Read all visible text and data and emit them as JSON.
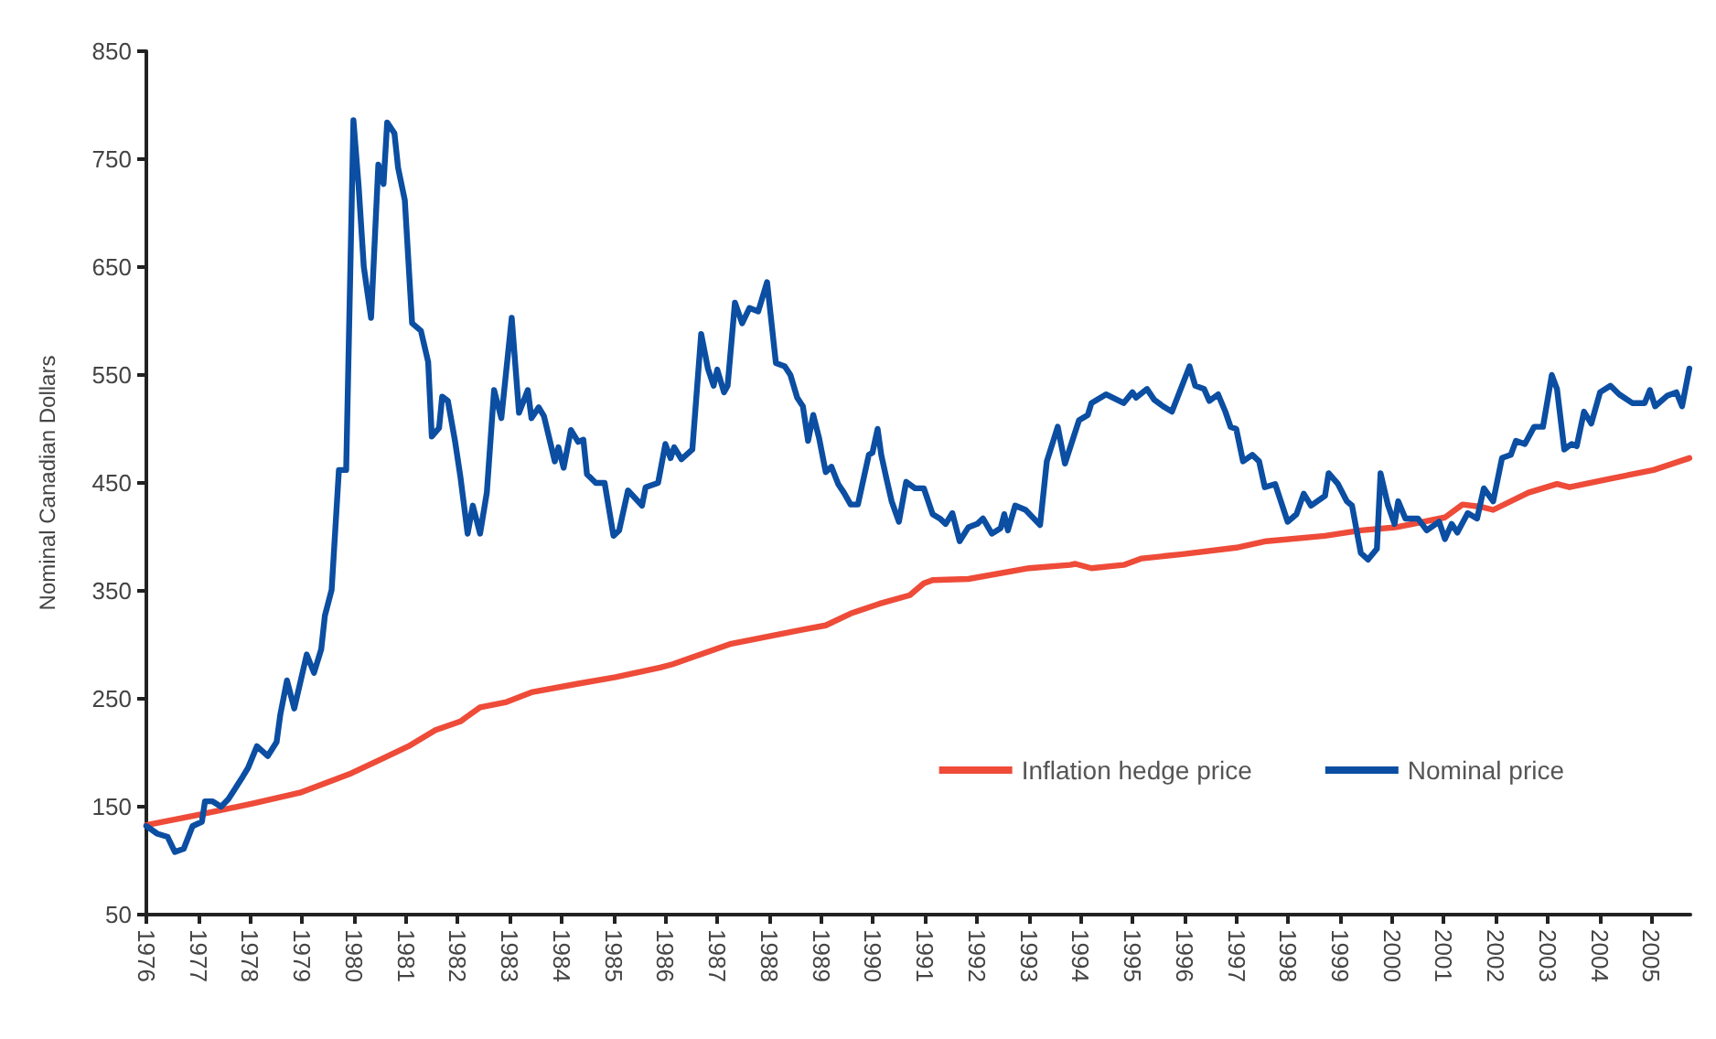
{
  "chart_data": {
    "type": "line",
    "ylabel": "Nominal Canadian Dollars",
    "xlim": [
      1976,
      2005.75
    ],
    "xticks": [
      1976,
      1977,
      1978,
      1979,
      1980,
      1981,
      1982,
      1983,
      1984,
      1985,
      1986,
      1987,
      1988,
      1989,
      1990,
      1991,
      1992,
      1993,
      1994,
      1995,
      1996,
      1997,
      1998,
      1999,
      2000,
      2001,
      2002,
      2003,
      2004,
      2005
    ],
    "ylim": [
      50,
      850
    ],
    "yticks": [
      50,
      150,
      250,
      350,
      450,
      550,
      650,
      750,
      850
    ],
    "grid": false,
    "legend": "bottom right",
    "marker": "none",
    "line_style": "solid",
    "series": [
      {
        "name": "Inflation hedge price",
        "color": "#ee4b39",
        "x": [
          1976.0,
          1976.96,
          1978.06,
          1978.96,
          1979.95,
          1980.57,
          1981.05,
          1981.57,
          1982.05,
          1982.43,
          1982.94,
          1983.42,
          1984.32,
          1985.04,
          1985.9,
          1986.14,
          1987.27,
          1988.65,
          1989.09,
          1989.57,
          1990.12,
          1990.71,
          1990.98,
          1991.15,
          1991.84,
          1993.01,
          1993.8,
          1993.9,
          1994.21,
          1994.83,
          1995.18,
          1995.97,
          1997.0,
          1997.58,
          1998.71,
          1999.4,
          2000.09,
          2001.02,
          2001.36,
          2001.7,
          2001.95,
          2002.63,
          2003.18,
          2003.42,
          2004.21,
          2005.04,
          2005.73
        ],
        "values": [
          133,
          142,
          153,
          163,
          181,
          195,
          206,
          221,
          229,
          242,
          247,
          256,
          264,
          270,
          279,
          282,
          301,
          314,
          318,
          329,
          338,
          346,
          357,
          360,
          361,
          371,
          374,
          375,
          371,
          374,
          380,
          384,
          390,
          396,
          401,
          406,
          409,
          418,
          430,
          428,
          425,
          441,
          449,
          446,
          454,
          462,
          473
        ]
      },
      {
        "name": "Nominal price",
        "color": "#0b4ea2",
        "x": [
          1976.0,
          1976.21,
          1976.41,
          1976.55,
          1976.72,
          1976.89,
          1977.07,
          1977.13,
          1977.27,
          1977.44,
          1977.58,
          1977.86,
          1977.96,
          1978.13,
          1978.34,
          1978.51,
          1978.58,
          1978.71,
          1978.85,
          1979.09,
          1979.23,
          1979.37,
          1979.44,
          1979.57,
          1979.71,
          1979.85,
          1979.99,
          1980.09,
          1980.19,
          1980.33,
          1980.47,
          1980.57,
          1980.64,
          1980.78,
          1980.85,
          1980.98,
          1981.12,
          1981.29,
          1981.43,
          1981.5,
          1981.64,
          1981.7,
          1981.81,
          1981.95,
          1982.05,
          1982.19,
          1982.29,
          1982.43,
          1982.56,
          1982.7,
          1982.84,
          1983.04,
          1983.18,
          1983.35,
          1983.42,
          1983.56,
          1983.66,
          1983.87,
          1983.94,
          1984.04,
          1984.18,
          1984.32,
          1984.42,
          1984.49,
          1984.66,
          1984.83,
          1985.0,
          1985.11,
          1985.28,
          1985.55,
          1985.62,
          1985.86,
          1986.0,
          1986.1,
          1986.17,
          1986.31,
          1986.52,
          1986.69,
          1986.82,
          1986.93,
          1987.0,
          1987.13,
          1987.2,
          1987.34,
          1987.48,
          1987.62,
          1987.79,
          1987.96,
          1988.13,
          1988.3,
          1988.41,
          1988.54,
          1988.65,
          1988.75,
          1988.85,
          1988.96,
          1989.09,
          1989.2,
          1989.33,
          1989.44,
          1989.57,
          1989.71,
          1989.92,
          1989.99,
          1990.09,
          1990.16,
          1990.26,
          1990.36,
          1990.5,
          1990.64,
          1990.81,
          1990.98,
          1991.15,
          1991.29,
          1991.4,
          1991.53,
          1991.67,
          1991.84,
          1992.01,
          1992.12,
          1992.29,
          1992.46,
          1992.53,
          1992.6,
          1992.74,
          1992.94,
          1993.22,
          1993.35,
          1993.56,
          1993.7,
          1993.97,
          1994.14,
          1994.21,
          1994.49,
          1994.83,
          1995.0,
          1995.07,
          1995.28,
          1995.42,
          1995.59,
          1995.76,
          1996.1,
          1996.21,
          1996.38,
          1996.48,
          1996.65,
          1996.79,
          1996.89,
          1997.0,
          1997.13,
          1997.31,
          1997.44,
          1997.55,
          1997.75,
          1997.99,
          1998.16,
          1998.3,
          1998.44,
          1998.71,
          1998.78,
          1998.96,
          1999.13,
          1999.23,
          1999.4,
          1999.54,
          1999.71,
          1999.78,
          1999.92,
          2000.05,
          2000.12,
          2000.26,
          2000.5,
          2000.67,
          2000.91,
          2001.02,
          2001.15,
          2001.26,
          2001.46,
          2001.64,
          2001.77,
          2001.95,
          2002.12,
          2002.29,
          2002.39,
          2002.56,
          2002.74,
          2002.91,
          2003.08,
          2003.18,
          2003.32,
          2003.46,
          2003.56,
          2003.7,
          2003.84,
          2004.01,
          2004.21,
          2004.38,
          2004.63,
          2004.87,
          2004.97,
          2005.07,
          2005.31,
          2005.48,
          2005.59,
          2005.73
        ],
        "values": [
          132,
          125,
          122,
          108,
          111,
          132,
          136,
          155,
          155,
          150,
          157,
          178,
          186,
          206,
          197,
          210,
          235,
          267,
          241,
          291,
          274,
          296,
          327,
          351,
          462,
          462,
          786,
          725,
          650,
          603,
          745,
          727,
          784,
          774,
          742,
          712,
          598,
          591,
          562,
          493,
          501,
          530,
          526,
          488,
          456,
          403,
          429,
          403,
          441,
          536,
          510,
          603,
          515,
          536,
          510,
          520,
          512,
          470,
          483,
          464,
          499,
          488,
          490,
          458,
          450,
          450,
          401,
          406,
          443,
          429,
          446,
          450,
          486,
          473,
          483,
          472,
          481,
          588,
          556,
          540,
          555,
          534,
          540,
          617,
          598,
          612,
          609,
          636,
          561,
          558,
          550,
          529,
          521,
          489,
          513,
          492,
          460,
          465,
          449,
          441,
          430,
          430,
          476,
          478,
          500,
          476,
          454,
          433,
          414,
          451,
          445,
          445,
          421,
          417,
          412,
          422,
          396,
          409,
          412,
          417,
          403,
          408,
          421,
          406,
          429,
          425,
          411,
          470,
          502,
          468,
          508,
          513,
          524,
          532,
          524,
          534,
          529,
          537,
          527,
          521,
          516,
          558,
          540,
          537,
          526,
          532,
          516,
          502,
          500,
          470,
          476,
          470,
          446,
          449,
          414,
          421,
          440,
          429,
          438,
          459,
          449,
          433,
          429,
          385,
          379,
          389,
          459,
          430,
          412,
          433,
          417,
          417,
          406,
          414,
          398,
          412,
          404,
          422,
          417,
          445,
          433,
          473,
          476,
          489,
          486,
          502,
          502,
          550,
          537,
          481,
          486,
          484,
          516,
          505,
          534,
          540,
          532,
          524,
          524,
          536,
          521,
          531,
          534,
          521,
          556
        ]
      }
    ]
  }
}
